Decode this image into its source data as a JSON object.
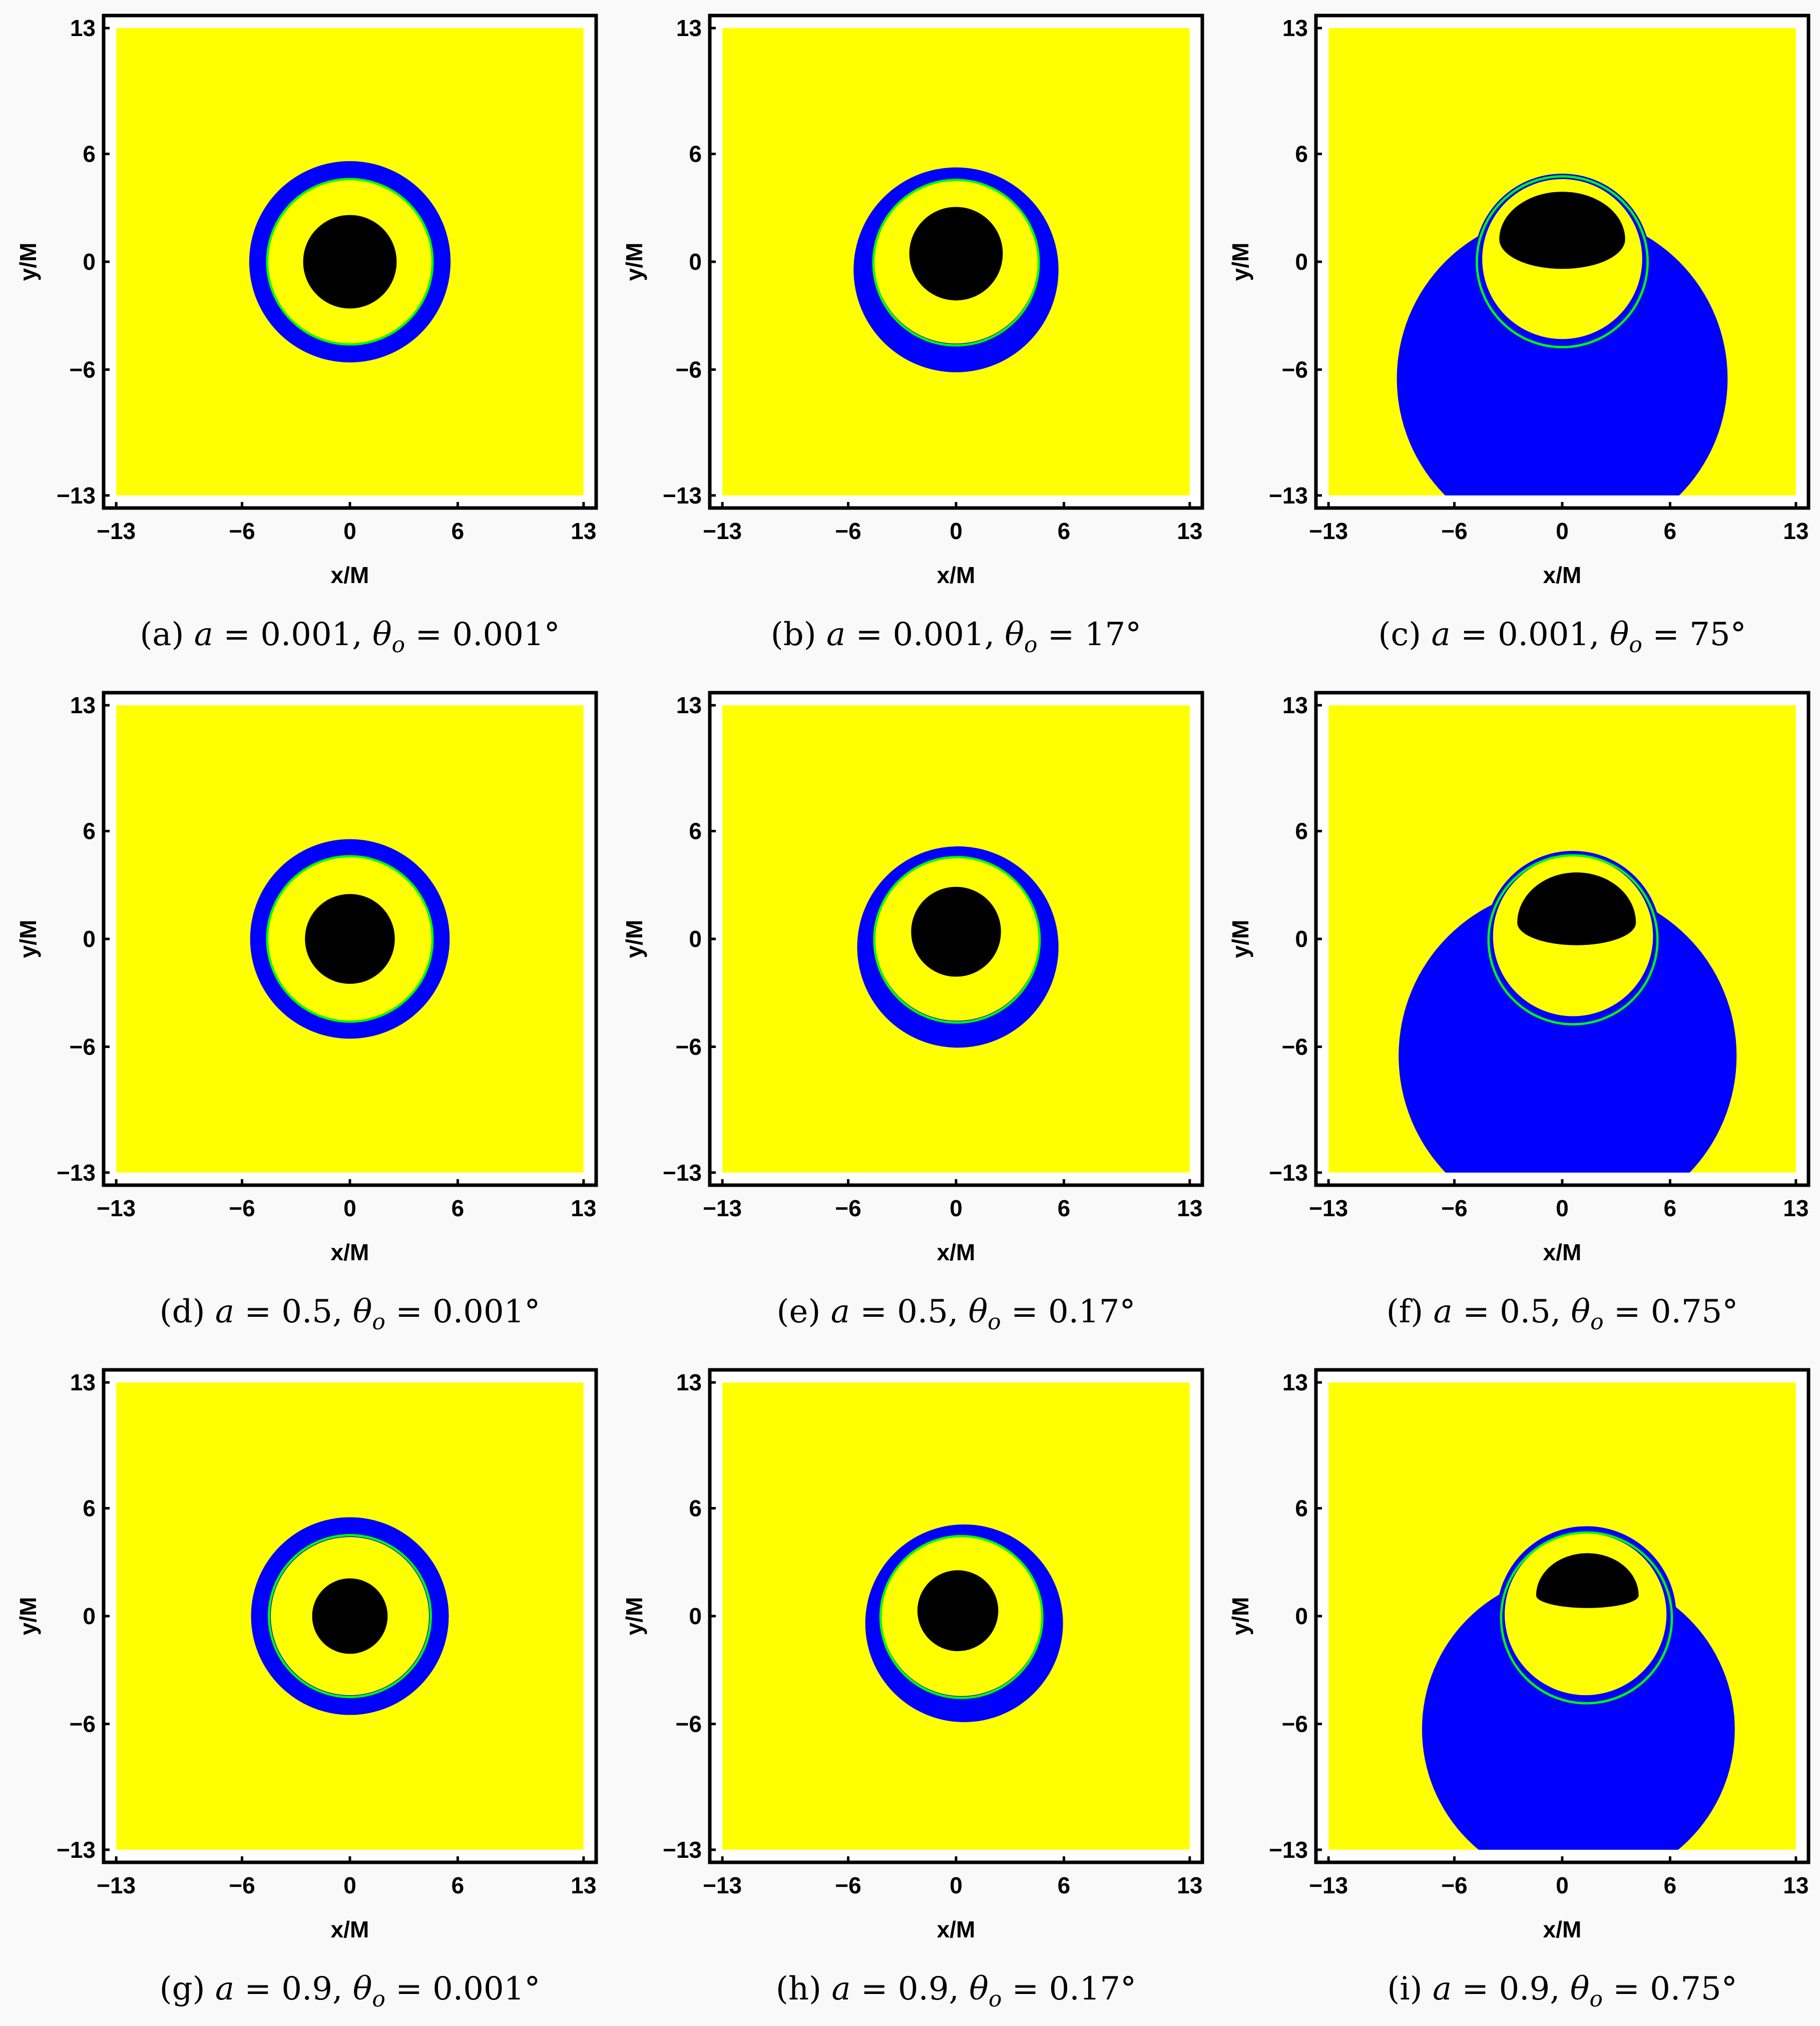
{
  "colors": {
    "outside": "#ffff00",
    "photon_region": "#0000ff",
    "shadow": "#000000",
    "ring": "#00ff00",
    "frame": "#000000"
  },
  "chart_data": {
    "type": "heatmap",
    "xlabel": "x/M",
    "ylabel": "y/M",
    "xlim": [
      -13,
      13
    ],
    "ylim": [
      -13,
      13
    ],
    "ticks": [
      -13,
      -6,
      0,
      6,
      13
    ],
    "tick_labels": [
      "−13",
      "−6",
      "0",
      "6",
      "13"
    ],
    "grid": false,
    "panels": [
      {
        "label": "(a)",
        "a": "0.001",
        "theta": "0.001°",
        "blue": [
          {
            "type": "circle",
            "cx": 0,
            "cy": 0,
            "r": 5.6
          }
        ],
        "yellow": {
          "cx": 0,
          "cy": 0,
          "r": 4.55
        },
        "ring": {
          "cx": 0,
          "cy": 0,
          "r": 4.6
        },
        "shadow": {
          "type": "circle",
          "cx": 0,
          "cy": 0,
          "r": 2.6
        }
      },
      {
        "label": "(b)",
        "a": "0.001",
        "theta": "17°",
        "blue": [
          {
            "type": "circle",
            "cx": 0,
            "cy": -0.45,
            "r": 5.7
          }
        ],
        "yellow": {
          "cx": 0,
          "cy": 0,
          "r": 4.55
        },
        "ring": {
          "cx": 0,
          "cy": -0.05,
          "r": 4.6
        },
        "shadow": {
          "type": "circle",
          "cx": 0,
          "cy": 0.45,
          "r": 2.6
        }
      },
      {
        "label": "(c)",
        "a": "0.001",
        "theta": "75°",
        "blue": [
          {
            "type": "circle",
            "cx": 0,
            "cy": -6.5,
            "r": 9.2
          },
          {
            "type": "circle",
            "cx": 0,
            "cy": 0,
            "r": 4.9
          },
          {
            "type": "polygon",
            "points": [
              [
                -4.8,
                0.9
              ],
              [
                -5.6,
                -0.3
              ],
              [
                -7.4,
                -2.4
              ],
              [
                -8.4,
                -4.2
              ],
              [
                8.4,
                -4.2
              ],
              [
                7.4,
                -2.4
              ],
              [
                5.6,
                -0.3
              ],
              [
                4.8,
                0.9
              ]
            ]
          }
        ],
        "yellow": {
          "cx": 0,
          "cy": 0.15,
          "r": 4.45
        },
        "ring": {
          "cx": 0,
          "cy": 0,
          "r": 4.75
        },
        "shadow": {
          "type": "blob",
          "cx": 0,
          "cy": 1.25,
          "rx": 3.5,
          "ry_top": 2.65,
          "ry_bottom": 1.65
        }
      },
      {
        "label": "(d)",
        "a": "0.5",
        "theta": "0.001°",
        "blue": [
          {
            "type": "circle",
            "cx": 0,
            "cy": 0,
            "r": 5.55
          }
        ],
        "yellow": {
          "cx": 0,
          "cy": 0,
          "r": 4.55
        },
        "ring": {
          "cx": 0,
          "cy": 0,
          "r": 4.6
        },
        "shadow": {
          "type": "circle",
          "cx": 0,
          "cy": 0,
          "r": 2.5
        }
      },
      {
        "label": "(e)",
        "a": "0.5",
        "theta": "0.17°",
        "blue": [
          {
            "type": "circle",
            "cx": 0.1,
            "cy": -0.45,
            "r": 5.6
          }
        ],
        "yellow": {
          "cx": 0.05,
          "cy": 0,
          "r": 4.55
        },
        "ring": {
          "cx": 0.05,
          "cy": -0.05,
          "r": 4.6
        },
        "shadow": {
          "type": "circle",
          "cx": 0,
          "cy": 0.4,
          "r": 2.5
        }
      },
      {
        "label": "(f)",
        "a": "0.5",
        "theta": "0.75°",
        "blue": [
          {
            "type": "circle",
            "cx": 0.3,
            "cy": -6.5,
            "r": 9.4
          },
          {
            "type": "circle",
            "cx": 0.6,
            "cy": 0,
            "r": 4.9
          },
          {
            "type": "polygon",
            "points": [
              [
                -4.1,
                0.9
              ],
              [
                -5.0,
                -0.3
              ],
              [
                -6.9,
                -2.4
              ],
              [
                -8.2,
                -4.2
              ],
              [
                8.9,
                -4.2
              ],
              [
                7.9,
                -2.4
              ],
              [
                6.2,
                -0.3
              ],
              [
                5.4,
                0.9
              ]
            ]
          }
        ],
        "yellow": {
          "cx": 0.6,
          "cy": 0.15,
          "r": 4.45
        },
        "ring": {
          "cx": 0.6,
          "cy": -0.05,
          "r": 4.7
        },
        "shadow": {
          "type": "blob",
          "cx": 0.8,
          "cy": 0.9,
          "rx": 3.3,
          "ry_top": 2.8,
          "ry_bottom": 1.25
        }
      },
      {
        "label": "(g)",
        "a": "0.9",
        "theta": "0.001°",
        "blue": [
          {
            "type": "circle",
            "cx": 0,
            "cy": 0,
            "r": 5.5
          }
        ],
        "yellow": {
          "cx": 0,
          "cy": 0,
          "r": 4.4
        },
        "ring": {
          "cx": 0,
          "cy": 0,
          "r": 4.5
        },
        "shadow": {
          "type": "circle",
          "cx": 0,
          "cy": 0,
          "r": 2.1
        }
      },
      {
        "label": "(h)",
        "a": "0.9",
        "theta": "0.17°",
        "blue": [
          {
            "type": "circle",
            "cx": 0.45,
            "cy": -0.4,
            "r": 5.5
          }
        ],
        "yellow": {
          "cx": 0.3,
          "cy": 0,
          "r": 4.45
        },
        "ring": {
          "cx": 0.3,
          "cy": -0.05,
          "r": 4.5
        },
        "shadow": {
          "type": "circle",
          "cx": 0.1,
          "cy": 0.3,
          "r": 2.25
        }
      },
      {
        "label": "(i)",
        "a": "0.9",
        "theta": "0.75°",
        "blue": [
          {
            "type": "circle",
            "cx": 0.9,
            "cy": -6.3,
            "r": 8.7
          },
          {
            "type": "circle",
            "cx": 1.35,
            "cy": 0,
            "r": 5.0
          },
          {
            "type": "polygon",
            "points": [
              [
                -3.3,
                1.0
              ],
              [
                -4.1,
                -0.2
              ],
              [
                -5.9,
                -2.4
              ],
              [
                -7.0,
                -4.2
              ],
              [
                8.8,
                -4.2
              ],
              [
                8.0,
                -2.4
              ],
              [
                6.8,
                -0.2
              ],
              [
                6.0,
                1.0
              ]
            ]
          }
        ],
        "yellow": {
          "cx": 1.3,
          "cy": 0.1,
          "r": 4.5
        },
        "ring": {
          "cx": 1.35,
          "cy": -0.1,
          "r": 4.75
        },
        "shadow": {
          "type": "blob",
          "cx": 1.4,
          "cy": 1.15,
          "rx": 2.85,
          "ry_top": 2.35,
          "ry_bottom": 0.7
        }
      }
    ]
  }
}
